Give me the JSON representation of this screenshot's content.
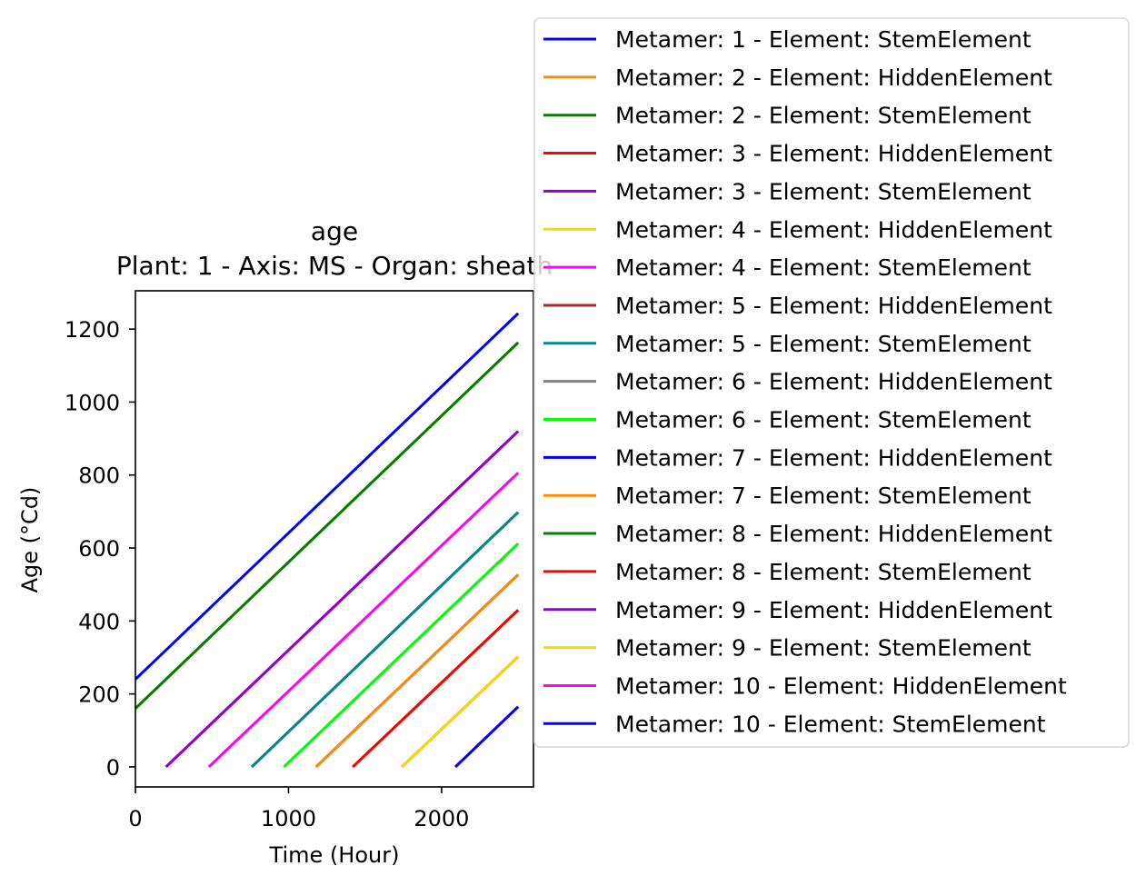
{
  "chart_data": {
    "type": "line",
    "title": "age",
    "subtitle": "Plant: 1 - Axis: MS - Organ: sheath",
    "xlabel": "Time (Hour)",
    "ylabel": "Age (°Cd)",
    "xlim": [
      0,
      2600
    ],
    "ylim": [
      -55,
      1305
    ],
    "xticks": [
      0,
      1000,
      2000
    ],
    "yticks": [
      0,
      200,
      400,
      600,
      800,
      1000,
      1200
    ],
    "grid": false,
    "legend_position": "top-right, outside plot",
    "series": [
      {
        "name": "Metamer: 1 - Element: StemElement",
        "color": "#0000ff",
        "x": [
          0,
          2500
        ],
        "y": [
          240,
          1243
        ]
      },
      {
        "name": "Metamer: 2 - Element: HiddenElement",
        "color": "#ff8c00",
        "x": [
          0,
          2500
        ],
        "y": [
          160,
          1163
        ]
      },
      {
        "name": "Metamer: 2 - Element: StemElement",
        "color": "#008000",
        "x": [
          0,
          2500
        ],
        "y": [
          160,
          1163
        ]
      },
      {
        "name": "Metamer: 3 - Element: HiddenElement",
        "color": "#ff0000",
        "x": [
          200,
          2500
        ],
        "y": [
          0,
          920
        ]
      },
      {
        "name": "Metamer: 3 - Element: StemElement",
        "color": "#9400d3",
        "x": [
          200,
          2500
        ],
        "y": [
          0,
          920
        ]
      },
      {
        "name": "Metamer: 4 - Element: HiddenElement",
        "color": "#ffd700",
        "x": [
          480,
          2500
        ],
        "y": [
          0,
          806
        ]
      },
      {
        "name": "Metamer: 4 - Element: StemElement",
        "color": "#ff00ff",
        "x": [
          480,
          2500
        ],
        "y": [
          0,
          806
        ]
      },
      {
        "name": "Metamer: 5 - Element: HiddenElement",
        "color": "#a52a2a",
        "x": [
          760,
          2500
        ],
        "y": [
          0,
          698
        ]
      },
      {
        "name": "Metamer: 5 - Element: StemElement",
        "color": "#008b8b",
        "x": [
          760,
          2500
        ],
        "y": [
          0,
          698
        ]
      },
      {
        "name": "Metamer: 6 - Element: HiddenElement",
        "color": "#808080",
        "x": [
          970,
          2500
        ],
        "y": [
          0,
          612
        ]
      },
      {
        "name": "Metamer: 6 - Element: StemElement",
        "color": "#00ff00",
        "x": [
          970,
          2500
        ],
        "y": [
          0,
          612
        ]
      },
      {
        "name": "Metamer: 7 - Element: HiddenElement",
        "color": "#0000ff",
        "x": [
          1180,
          2500
        ],
        "y": [
          0,
          527
        ]
      },
      {
        "name": "Metamer: 7 - Element: StemElement",
        "color": "#ff8c00",
        "x": [
          1180,
          2500
        ],
        "y": [
          0,
          527
        ]
      },
      {
        "name": "Metamer: 8 - Element: HiddenElement",
        "color": "#008000",
        "x": [
          1420,
          2500
        ],
        "y": [
          0,
          430
        ]
      },
      {
        "name": "Metamer: 8 - Element: StemElement",
        "color": "#ff0000",
        "x": [
          1420,
          2500
        ],
        "y": [
          0,
          430
        ]
      },
      {
        "name": "Metamer: 9 - Element: HiddenElement",
        "color": "#9400d3",
        "x": [
          1740,
          2500
        ],
        "y": [
          0,
          302
        ]
      },
      {
        "name": "Metamer: 9 - Element: StemElement",
        "color": "#ffd700",
        "x": [
          1740,
          2500
        ],
        "y": [
          0,
          302
        ]
      },
      {
        "name": "Metamer: 10 - Element: HiddenElement",
        "color": "#ff00ff",
        "x": [
          2090,
          2500
        ],
        "y": [
          0,
          165
        ]
      },
      {
        "name": "Metamer: 10 - Element: StemElement",
        "color": "#0000ff",
        "x": [
          2090,
          2500
        ],
        "y": [
          0,
          165
        ]
      }
    ]
  }
}
